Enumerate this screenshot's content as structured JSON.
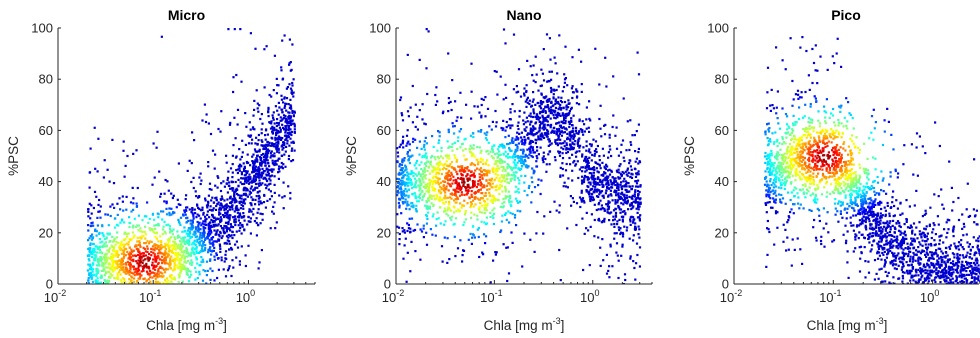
{
  "chart_data": [
    {
      "type": "scatter",
      "title": "Micro",
      "xlabel": "Chla [mg m",
      "xlabel_sup": "-3",
      "xlabel_close": "]",
      "ylabel": "%PSC",
      "x_scale": "log",
      "xlim": [
        0.01,
        5
      ],
      "ylim": [
        0,
        100
      ],
      "y_ticks": [
        "0",
        "20",
        "40",
        "60",
        "80",
        "100"
      ],
      "x_ticks": [
        {
          "base": "10",
          "exp": "-2"
        },
        {
          "base": "10",
          "exp": "-1"
        },
        {
          "base": "10",
          "exp": "0"
        }
      ],
      "colormap": "jet (point density, low=blue, high=dark red)",
      "density_core": {
        "x": 0.08,
        "y": 9
      },
      "points": [
        [
          0.02,
          10
        ],
        [
          0.03,
          8
        ],
        [
          0.05,
          9
        ],
        [
          0.08,
          9
        ],
        [
          0.1,
          10
        ],
        [
          0.15,
          11
        ],
        [
          0.2,
          13
        ],
        [
          0.3,
          18
        ],
        [
          0.5,
          25
        ],
        [
          0.7,
          32
        ],
        [
          1.0,
          40
        ],
        [
          1.5,
          50
        ],
        [
          2.0,
          58
        ],
        [
          3.0,
          65
        ]
      ],
      "outliers_top": [
        [
          0.6,
          100
        ],
        [
          0.7,
          100
        ],
        [
          0.8,
          100
        ],
        [
          0.12,
          97
        ]
      ]
    },
    {
      "type": "scatter",
      "title": "Nano",
      "xlabel": "Chla [mg m",
      "xlabel_sup": "-3",
      "xlabel_close": "]",
      "ylabel": "%PSC",
      "x_scale": "log",
      "xlim": [
        0.01,
        4
      ],
      "ylim": [
        0,
        100
      ],
      "y_ticks": [
        "0",
        "20",
        "40",
        "60",
        "80",
        "100"
      ],
      "x_ticks": [
        {
          "base": "10",
          "exp": "-2"
        },
        {
          "base": "10",
          "exp": "-1"
        },
        {
          "base": "10",
          "exp": "0"
        }
      ],
      "colormap": "jet (point density, low=blue, high=dark red)",
      "density_core": {
        "x": 0.05,
        "y": 40
      },
      "points": [
        [
          0.01,
          40
        ],
        [
          0.02,
          40
        ],
        [
          0.04,
          40
        ],
        [
          0.06,
          41
        ],
        [
          0.1,
          43
        ],
        [
          0.15,
          48
        ],
        [
          0.2,
          55
        ],
        [
          0.3,
          64
        ],
        [
          0.4,
          66
        ],
        [
          0.6,
          58
        ],
        [
          0.8,
          48
        ],
        [
          1.0,
          40
        ],
        [
          2.0,
          35
        ],
        [
          3.0,
          32
        ]
      ],
      "outliers_top": [
        [
          0.02,
          100
        ]
      ]
    },
    {
      "type": "scatter",
      "title": "Pico",
      "xlabel": "Chla [mg m",
      "xlabel_sup": "-3",
      "xlabel_close": "]",
      "ylabel": "%PSC",
      "x_scale": "log",
      "xlim": [
        0.01,
        3
      ],
      "ylim": [
        0,
        100
      ],
      "y_ticks": [
        "0",
        "20",
        "40",
        "60",
        "80",
        "100"
      ],
      "x_ticks": [
        {
          "base": "10",
          "exp": "-2"
        },
        {
          "base": "10",
          "exp": "-1"
        },
        {
          "base": "10",
          "exp": "0"
        }
      ],
      "colormap": "jet (point density, low=blue, high=dark red)",
      "density_core": {
        "x": 0.08,
        "y": 50
      },
      "points": [
        [
          0.02,
          40
        ],
        [
          0.03,
          47
        ],
        [
          0.05,
          50
        ],
        [
          0.08,
          50
        ],
        [
          0.1,
          48
        ],
        [
          0.15,
          40
        ],
        [
          0.2,
          30
        ],
        [
          0.3,
          20
        ],
        [
          0.5,
          12
        ],
        [
          0.8,
          8
        ],
        [
          1.0,
          6
        ],
        [
          2.0,
          4
        ],
        [
          3.0,
          3
        ]
      ],
      "outliers_top": []
    }
  ]
}
